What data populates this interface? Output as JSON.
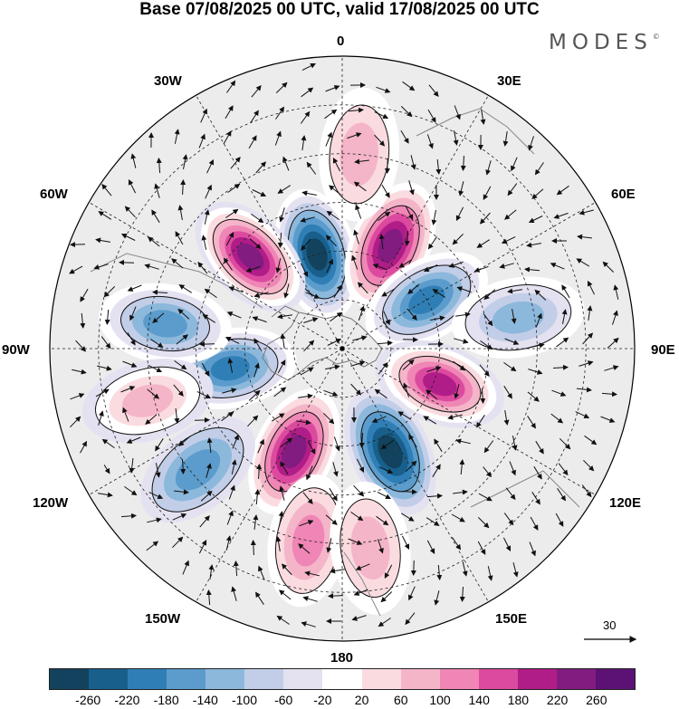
{
  "title": "Base 07/08/2025 00 UTC, valid 17/08/2025 00 UTC",
  "brand": {
    "name": "MODES",
    "mark": "©"
  },
  "map_labels": {
    "lon_0": "0",
    "lon_30e": "30E",
    "lon_60e": "60E",
    "lon_90e": "90E",
    "lon_120e": "120E",
    "lon_150e": "150E",
    "lon_180": "180",
    "lon_150w": "150W",
    "lon_120w": "120W",
    "lon_90w": "90W",
    "lon_60w": "60W",
    "lon_30w": "30W"
  },
  "reference_vector": {
    "value": "30"
  },
  "colorbar": {
    "colors": [
      "#12425e",
      "#195f8c",
      "#2f7fb6",
      "#5b9ccc",
      "#8cb8dc",
      "#c2cee8",
      "#e4e2f1",
      "#ffffff",
      "#fadce0",
      "#f5b5c9",
      "#ef86b5",
      "#dc4a9f",
      "#b11d88",
      "#821c80",
      "#5b1274"
    ],
    "tick_labels": [
      "-260",
      "-220",
      "-180",
      "-140",
      "-100",
      "-60",
      "-20",
      "20",
      "60",
      "100",
      "140",
      "180",
      "220",
      "260"
    ]
  },
  "anomaly_centers": [
    {
      "name": "negative-center-north",
      "lon": -15,
      "lat": 60,
      "value": -270
    },
    {
      "name": "positive-center-north-east",
      "lon": 25,
      "lat": 55,
      "value": 250
    },
    {
      "name": "positive-center-north-west",
      "lon": -45,
      "lat": 50,
      "value": 265
    },
    {
      "name": "negative-center-east",
      "lon": 60,
      "lat": 60,
      "value": -200
    },
    {
      "name": "positive-center-south-east",
      "lon": 110,
      "lat": 58,
      "value": 230
    },
    {
      "name": "negative-center-south",
      "lon": 155,
      "lat": 55,
      "value": -260
    },
    {
      "name": "positive-center-south-west",
      "lon": -155,
      "lat": 55,
      "value": 255
    },
    {
      "name": "negative-center-west",
      "lon": -100,
      "lat": 55,
      "value": -190
    },
    {
      "name": "negative-center-far-west",
      "lon": -82,
      "lat": 35,
      "value": -150
    },
    {
      "name": "positive-center-far-west",
      "lon": -105,
      "lat": 28,
      "value": 110
    },
    {
      "name": "negative-center-south-west-outer",
      "lon": -130,
      "lat": 32,
      "value": -130
    },
    {
      "name": "positive-center-south-outer",
      "lon": -170,
      "lat": 30,
      "value": 120
    },
    {
      "name": "positive-center-south-outer-2",
      "lon": 172,
      "lat": 28,
      "value": 100
    },
    {
      "name": "negative-center-east-outer",
      "lon": 80,
      "lat": 35,
      "value": -110
    },
    {
      "name": "positive-center-north-outer",
      "lon": 5,
      "lat": 30,
      "value": 90
    }
  ]
}
